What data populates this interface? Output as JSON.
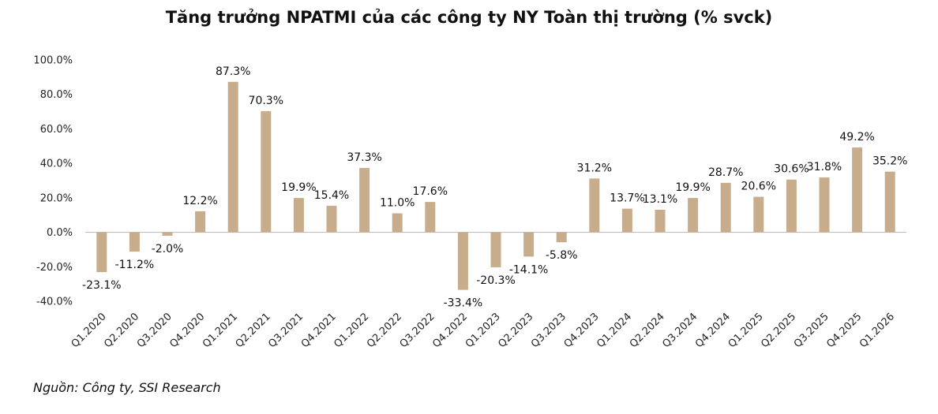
{
  "chart_data": {
    "type": "bar",
    "title": "Tăng trưởng NPATMI của các công ty NY Toàn thị trường (% svck)",
    "xlabel": "",
    "ylabel": "",
    "ylim": [
      -40,
      100
    ],
    "yticks": [
      100,
      80,
      60,
      40,
      20,
      0,
      -20,
      -40
    ],
    "ytick_labels": [
      "100.0%",
      "80.0%",
      "60.0%",
      "40.0%",
      "20.0%",
      "0.0%",
      "-20.0%",
      "-40.0%"
    ],
    "categories": [
      "Q1.2020",
      "Q2.2020",
      "Q3.2020",
      "Q4.2020",
      "Q1.2021",
      "Q2.2021",
      "Q3.2021",
      "Q4.2021",
      "Q1.2022",
      "Q2.2022",
      "Q3.2022",
      "Q4.2022",
      "Q1.2023",
      "Q2.2023",
      "Q3.2023",
      "Q4.2023",
      "Q1.2024",
      "Q2.2024",
      "Q3.2024",
      "Q4.2024",
      "Q1.2025",
      "Q2.2025",
      "Q3.2025",
      "Q4.2025",
      "Q1.2026"
    ],
    "values": [
      -23.1,
      -11.2,
      -2.0,
      12.2,
      87.3,
      70.3,
      19.9,
      15.4,
      37.3,
      11.0,
      17.6,
      -33.4,
      -20.3,
      -14.1,
      -5.8,
      31.2,
      13.7,
      13.1,
      19.9,
      28.7,
      20.6,
      30.6,
      31.8,
      49.2,
      35.2
    ],
    "data_labels": [
      "-23.1%",
      "-11.2%",
      "-2.0%",
      "12.2%",
      "87.3%",
      "70.3%",
      "19.9%",
      "15.4%",
      "37.3%",
      "11.0%",
      "17.6%",
      "-33.4%",
      "-20.3%",
      "-14.1%",
      "-5.8%",
      "31.2%",
      "13.7%",
      "13.1%",
      "19.9%",
      "28.7%",
      "20.6%",
      "30.6%",
      "31.8%",
      "49.2%",
      "35.2%"
    ],
    "bar_color": "#C8AD8D",
    "zero_line_color": "#BFBFBF",
    "grid": false,
    "legend": "none"
  },
  "source_note": "Nguồn: Công ty, SSI Research"
}
